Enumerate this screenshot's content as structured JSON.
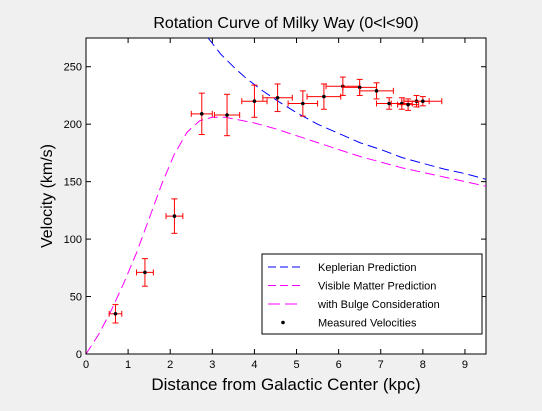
{
  "chart_data": {
    "type": "scatter",
    "title": "Rotation Curve of Milky Way (0<l<90)",
    "xlabel": "Distance from Galactic Center (kpc)",
    "ylabel": "Velocity (km/s)",
    "xlim": [
      0,
      9.5
    ],
    "ylim": [
      0,
      275
    ],
    "x_ticks": [
      0,
      1,
      2,
      3,
      4,
      5,
      6,
      7,
      8,
      9
    ],
    "y_ticks": [
      0,
      50,
      100,
      150,
      200,
      250
    ],
    "grid": false,
    "legend_position": "bottom-right",
    "legend": [
      {
        "label": "Keplerian Prediction",
        "style": "dashed",
        "color": "#0000ff"
      },
      {
        "label": "Visible Matter Prediction",
        "style": "dashed",
        "color": "#ff00ff"
      },
      {
        "label": "with Bulge Consideration",
        "style": "long-dashed",
        "color": "#ff00ff"
      },
      {
        "label": "Measured Velocities",
        "style": "dot",
        "color": "#000000"
      }
    ],
    "series": [
      {
        "name": "Keplerian Prediction",
        "kind": "line",
        "color": "#0000ff",
        "x": [
          2.9,
          3.2,
          3.5,
          3.8,
          4.2,
          4.6,
          5.0,
          5.5,
          6.0,
          6.5,
          7.0,
          7.5,
          8.0,
          8.5,
          9.0,
          9.5
        ],
        "y": [
          275,
          261,
          250,
          240,
          229,
          219,
          210,
          200,
          192,
          184,
          178,
          171,
          166,
          161,
          157,
          152
        ]
      },
      {
        "name": "Visible Matter Prediction",
        "kind": "line",
        "color": "#ff00ff",
        "x": [
          0,
          0.3,
          0.6,
          0.9,
          1.2,
          1.5,
          1.8,
          2.1,
          2.4,
          2.7,
          3.0,
          3.3,
          3.6,
          4.0,
          4.5,
          5.0,
          5.5,
          6.0,
          6.5,
          7.0,
          7.5,
          8.0,
          8.5,
          9.0,
          9.5
        ],
        "y": [
          0,
          17,
          38,
          62,
          88,
          118,
          148,
          174,
          193,
          203,
          206,
          206,
          204,
          201,
          196,
          190,
          184,
          178,
          172,
          167,
          162,
          158,
          154,
          150,
          146
        ]
      },
      {
        "name": "Measured Velocities",
        "kind": "points",
        "color": "#ff0000",
        "x": [
          0.7,
          1.4,
          2.1,
          2.75,
          3.35,
          4.0,
          4.55,
          5.15,
          5.65,
          6.1,
          6.5,
          6.9,
          7.2,
          7.5,
          7.65,
          7.85,
          8.0
        ],
        "y": [
          35,
          71,
          120,
          209,
          208,
          220,
          223,
          218,
          224,
          233,
          232,
          229,
          218,
          218,
          217,
          220,
          220
        ],
        "xerr": [
          0.15,
          0.2,
          0.2,
          0.25,
          0.3,
          0.3,
          0.35,
          0.35,
          0.4,
          0.4,
          0.4,
          0.4,
          0.3,
          0.25,
          0.25,
          0.3,
          0.45
        ],
        "yerr": [
          8,
          12,
          15,
          18,
          18,
          14,
          12,
          11,
          11,
          8,
          7,
          7,
          5,
          5,
          5,
          5,
          4
        ]
      }
    ]
  }
}
